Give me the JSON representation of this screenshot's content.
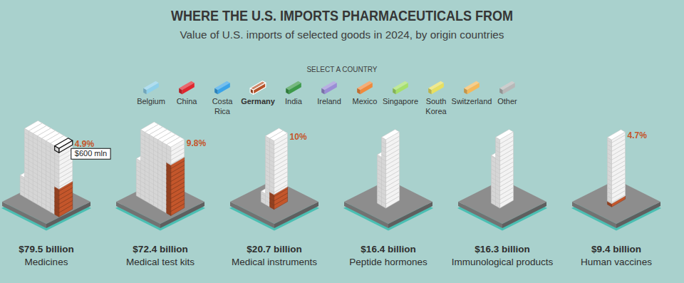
{
  "chart_data": {
    "type": "bar",
    "title": "WHERE THE U.S. IMPORTS PHARMACEUTICALS FROM",
    "subtitle": "Value of U.S. imports of selected goods in 2024, by origin countries",
    "legend_title": "SELECT A COUNTRY",
    "countries": [
      {
        "name": "Belgium",
        "color": "#8fd0ea"
      },
      {
        "name": "China",
        "color": "#e0262e"
      },
      {
        "name": "Costa Rica",
        "color": "#3aa3e8"
      },
      {
        "name": "Germany",
        "color": "#b5532a"
      },
      {
        "name": "India",
        "color": "#3d9a4a"
      },
      {
        "name": "Ireland",
        "color": "#9b8cd6"
      },
      {
        "name": "Mexico",
        "color": "#f08a3c"
      },
      {
        "name": "Singapore",
        "color": "#a6e06a"
      },
      {
        "name": "South Korea",
        "color": "#e8e060"
      },
      {
        "name": "Switzerland",
        "color": "#f5b95a"
      },
      {
        "name": "Other",
        "color": "#b8b8b8"
      }
    ],
    "categories": [
      "Medicines",
      "Medical test kits",
      "Medical instruments",
      "Peptide hormones",
      "Immunological products",
      "Human vaccines"
    ],
    "values": [
      79.5,
      72.4,
      20.7,
      16.4,
      16.3,
      9.4
    ],
    "value_labels": [
      "$79.5 billion",
      "$72.4 billion",
      "$20.7 billion",
      "$16.4 billion",
      "$16.3 billion",
      "$9.4 billion"
    ],
    "series": [
      {
        "name": "Germany",
        "color": "#c4562b",
        "values": [
          4.9,
          9.8,
          10,
          null,
          null,
          4.7
        ],
        "value_labels": [
          "4.9%",
          "9.8%",
          "10%",
          null,
          null,
          "4.7%"
        ]
      }
    ],
    "annotations": [
      {
        "value": 0.6,
        "label": "$600 mln"
      }
    ],
    "data_labels": true
  }
}
